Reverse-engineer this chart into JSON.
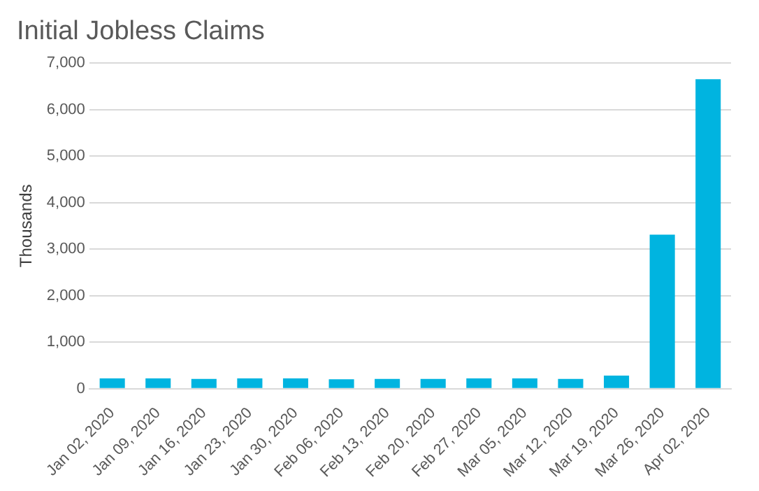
{
  "chart_data": {
    "type": "bar",
    "title": "Initial Jobless Claims",
    "ylabel": "Thousands",
    "categories": [
      "Jan 02, 2020",
      "Jan 09, 2020",
      "Jan 16, 2020",
      "Jan 23, 2020",
      "Jan 30, 2020",
      "Feb 06, 2020",
      "Feb 13, 2020",
      "Feb 20, 2020",
      "Feb 27, 2020",
      "Mar 05, 2020",
      "Mar 12, 2020",
      "Mar 19, 2020",
      "Mar 26, 2020",
      "Apr 02, 2020"
    ],
    "values": [
      220,
      220,
      210,
      220,
      220,
      200,
      210,
      210,
      220,
      220,
      210,
      280,
      3310,
      6650
    ],
    "color": "#00b4e0",
    "ylim": [
      0,
      7000
    ],
    "yticks": [
      {
        "value": 0,
        "label": "0"
      },
      {
        "value": 1000,
        "label": "1,000"
      },
      {
        "value": 2000,
        "label": "2,000"
      },
      {
        "value": 3000,
        "label": "3,000"
      },
      {
        "value": 4000,
        "label": "4,000"
      },
      {
        "value": 5000,
        "label": "5,000"
      },
      {
        "value": 6000,
        "label": "6,000"
      },
      {
        "value": 7000,
        "label": "7,000"
      }
    ],
    "grid": "y"
  }
}
